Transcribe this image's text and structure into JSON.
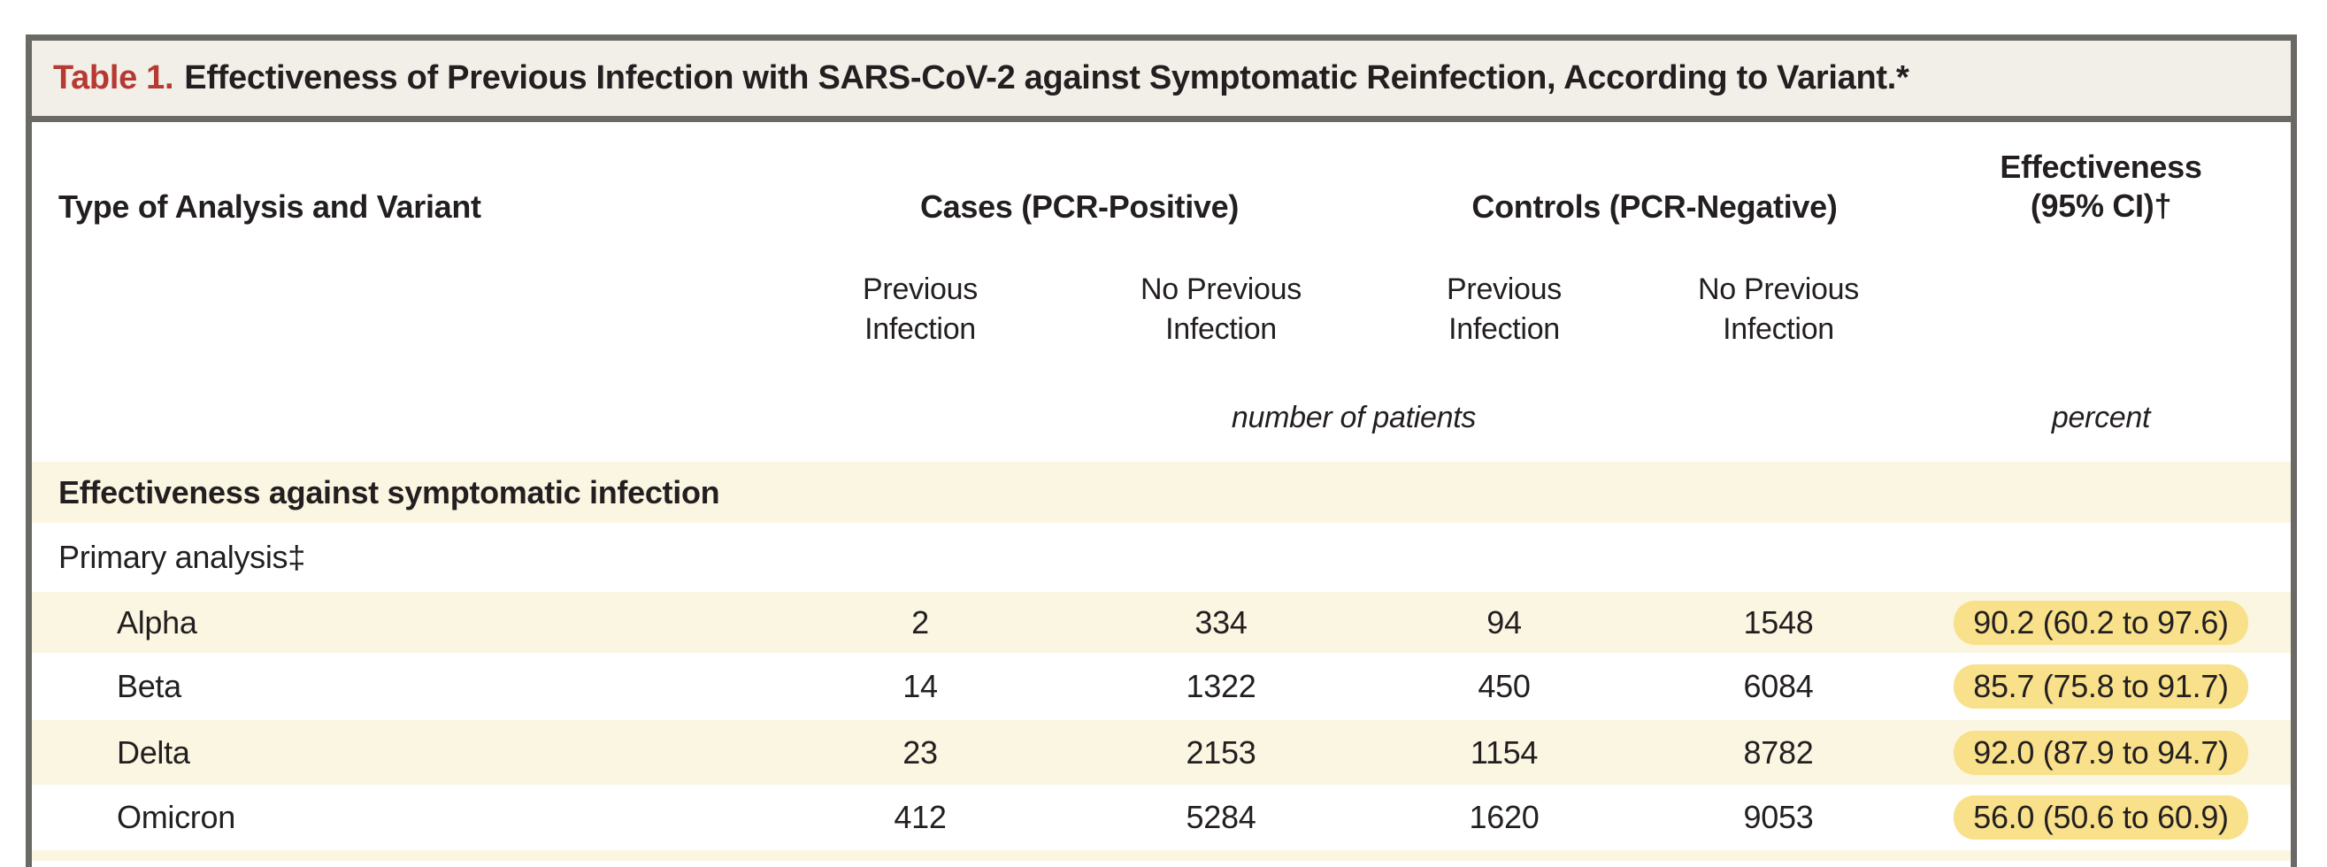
{
  "table": {
    "title_label": "Table 1.",
    "title_text": "Effectiveness of Previous Infection with SARS-CoV-2 against Symptomatic Reinfection, According to Variant.*",
    "header": {
      "col1": "Type of Analysis and Variant",
      "cases_group": "Cases (PCR-Positive)",
      "controls_group": "Controls (PCR-Negative)",
      "effectiveness": {
        "line1": "Effectiveness",
        "line2": "(95% CI)†"
      },
      "subheaders": [
        {
          "line1": "Previous",
          "line2": "Infection"
        },
        {
          "line1": "No Previous",
          "line2": "Infection"
        },
        {
          "line1": "Previous",
          "line2": "Infection"
        },
        {
          "line1": "No Previous",
          "line2": "Infection"
        }
      ],
      "units": {
        "patients": "number of patients",
        "percent": "percent"
      }
    },
    "section_header": "Effectiveness against symptomatic infection",
    "subsection_label": "Primary analysis‡",
    "rows": [
      {
        "variant": "Alpha",
        "cases_prev": "2",
        "cases_noprev": "334",
        "controls_prev": "94",
        "controls_noprev": "1548",
        "effectiveness": "90.2 (60.2 to 97.6)"
      },
      {
        "variant": "Beta",
        "cases_prev": "14",
        "cases_noprev": "1322",
        "controls_prev": "450",
        "controls_noprev": "6084",
        "effectiveness": "85.7 (75.8 to 91.7)"
      },
      {
        "variant": "Delta",
        "cases_prev": "23",
        "cases_noprev": "2153",
        "controls_prev": "1154",
        "controls_noprev": "8782",
        "effectiveness": "92.0 (87.9 to 94.7)"
      },
      {
        "variant": "Omicron",
        "cases_prev": "412",
        "cases_noprev": "5284",
        "controls_prev": "1620",
        "controls_noprev": "9053",
        "effectiveness": "56.0 (50.6 to 60.9)"
      }
    ],
    "colors": {
      "accent_red": "#b63a31",
      "border_gray": "#6b6966",
      "title_bar_bg": "#f2efe8",
      "row_stripe": "#fbf6e2",
      "highlight_yellow": "#f8e18a"
    }
  },
  "chart_data": {
    "type": "table",
    "title": "Table 1. Effectiveness of Previous Infection with SARS-CoV-2 against Symptomatic Reinfection, According to Variant.*",
    "section": "Effectiveness against symptomatic infection — Primary analysis‡",
    "columns": [
      "Type of Analysis and Variant",
      "Cases (PCR-Positive) — Previous Infection",
      "Cases (PCR-Positive) — No Previous Infection",
      "Controls (PCR-Negative) — Previous Infection",
      "Controls (PCR-Negative) — No Previous Infection",
      "Effectiveness (95% CI)†, percent"
    ],
    "rows": [
      [
        "Alpha",
        2,
        334,
        94,
        1548,
        "90.2 (60.2 to 97.6)"
      ],
      [
        "Beta",
        14,
        1322,
        450,
        6084,
        "85.7 (75.8 to 91.7)"
      ],
      [
        "Delta",
        23,
        2153,
        1154,
        8782,
        "92.0 (87.9 to 94.7)"
      ],
      [
        "Omicron",
        412,
        5284,
        1620,
        9053,
        "56.0 (50.6 to 60.9)"
      ]
    ]
  }
}
